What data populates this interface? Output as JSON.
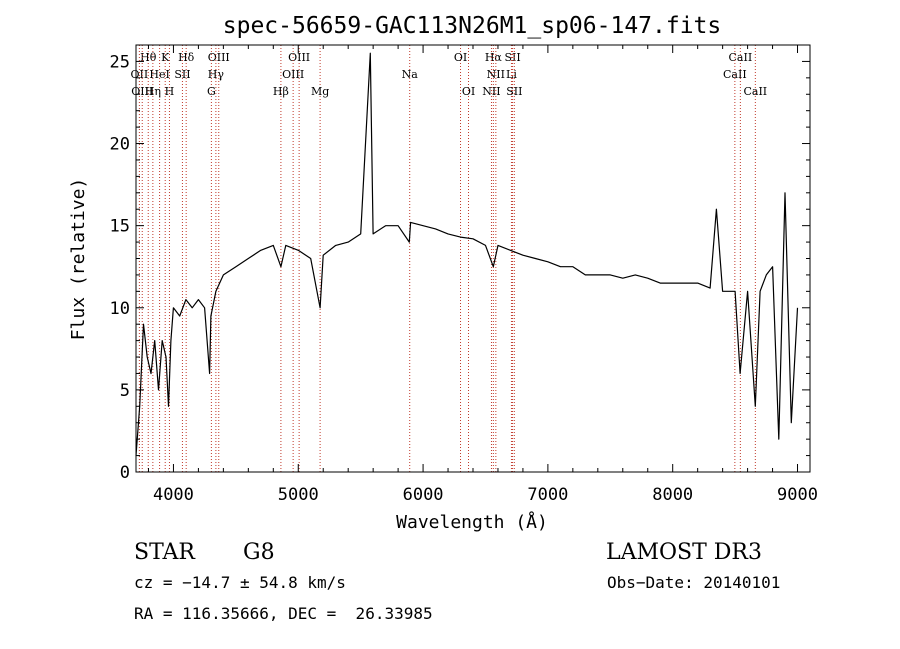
{
  "chart_data": {
    "type": "line",
    "title": "spec-56659-GAC113N26M1_sp06-147.fits",
    "xlabel": "Wavelength (Å)",
    "ylabel": "Flux (relative)",
    "xlim": [
      3700,
      9100
    ],
    "ylim": [
      0,
      26
    ],
    "x_ticks": [
      4000,
      5000,
      6000,
      7000,
      8000,
      9000
    ],
    "y_ticks": [
      0,
      5,
      10,
      15,
      20,
      25
    ],
    "grid": false,
    "series": [
      {
        "color": "#000000",
        "x": [
          3700,
          3730,
          3760,
          3790,
          3820,
          3850,
          3880,
          3910,
          3940,
          3960,
          3980,
          4000,
          4050,
          4100,
          4150,
          4200,
          4250,
          4290,
          4300,
          4340,
          4400,
          4500,
          4600,
          4700,
          4800,
          4861,
          4900,
          5000,
          5100,
          5175,
          5200,
          5300,
          5400,
          5500,
          5577,
          5600,
          5700,
          5800,
          5890,
          5900,
          6000,
          6100,
          6200,
          6300,
          6400,
          6500,
          6563,
          6600,
          6700,
          6800,
          6900,
          7000,
          7100,
          7200,
          7300,
          7400,
          7500,
          7600,
          7700,
          7800,
          7900,
          8000,
          8100,
          8200,
          8300,
          8350,
          8400,
          8500,
          8540,
          8600,
          8662,
          8700,
          8750,
          8800,
          8850,
          8900,
          8950,
          9000
        ],
        "y": [
          1,
          4,
          9,
          7,
          6,
          8,
          5,
          8,
          7,
          4,
          8,
          10,
          9.5,
          10.5,
          10,
          10.5,
          10,
          6,
          9.5,
          11,
          12,
          12.5,
          13,
          13.5,
          13.8,
          12.5,
          13.8,
          13.5,
          13,
          10,
          13.2,
          13.8,
          14,
          14.5,
          25.5,
          14.5,
          15,
          15,
          14,
          15.2,
          15,
          14.8,
          14.5,
          14.3,
          14.2,
          13.8,
          12.5,
          13.8,
          13.5,
          13.2,
          13,
          12.8,
          12.5,
          12.5,
          12,
          12,
          12,
          11.8,
          12,
          11.8,
          11.5,
          11.5,
          11.5,
          11.5,
          11.2,
          16,
          11,
          11,
          6,
          11,
          4,
          11,
          12,
          12.5,
          2,
          17,
          3,
          10
        ]
      }
    ],
    "line_labels": [
      {
        "text": "Hθ",
        "row": 1,
        "lines": [
          3798
        ]
      },
      {
        "text": "K",
        "row": 1,
        "lines": [
          3934
        ]
      },
      {
        "text": "Hδ",
        "row": 1,
        "lines": [
          4102
        ]
      },
      {
        "text": "OIII",
        "row": 1,
        "lines": [
          4363
        ]
      },
      {
        "text": "OIII",
        "row": 1,
        "lines": [
          5007
        ]
      },
      {
        "text": "OI",
        "row": 1,
        "lines": [
          6300
        ]
      },
      {
        "text": "Hα",
        "row": 1,
        "lines": [
          6563
        ]
      },
      {
        "text": "SII",
        "row": 1,
        "lines": [
          6717
        ]
      },
      {
        "text": "CaII",
        "row": 1,
        "lines": [
          8542
        ]
      },
      {
        "text": "OII",
        "row": 2,
        "lines": [
          3727
        ]
      },
      {
        "text": "HeI",
        "row": 2,
        "lines": [
          3889
        ]
      },
      {
        "text": "SII",
        "row": 2,
        "lines": [
          4072
        ]
      },
      {
        "text": "Hγ",
        "row": 2,
        "lines": [
          4340
        ]
      },
      {
        "text": "OIII",
        "row": 2,
        "lines": [
          4959
        ]
      },
      {
        "text": "Na",
        "row": 2,
        "lines": [
          5893
        ]
      },
      {
        "text": "NII",
        "row": 2,
        "lines": [
          6583
        ]
      },
      {
        "text": "Li",
        "row": 2,
        "lines": [
          6708
        ]
      },
      {
        "text": "CaII",
        "row": 2,
        "lines": [
          8498
        ]
      },
      {
        "text": "OIII",
        "row": 3,
        "lines": [
          3750
        ]
      },
      {
        "text": "Hη",
        "row": 3,
        "lines": [
          3835
        ]
      },
      {
        "text": "H",
        "row": 3,
        "lines": [
          3968
        ]
      },
      {
        "text": "G",
        "row": 3,
        "lines": [
          4304
        ]
      },
      {
        "text": "Hβ",
        "row": 3,
        "lines": [
          4861
        ]
      },
      {
        "text": "Mg",
        "row": 3,
        "lines": [
          5175
        ]
      },
      {
        "text": "OI",
        "row": 3,
        "lines": [
          6364
        ]
      },
      {
        "text": "NII",
        "row": 3,
        "lines": [
          6548
        ]
      },
      {
        "text": "SII",
        "row": 3,
        "lines": [
          6731
        ]
      },
      {
        "text": "CaII",
        "row": 3,
        "lines": [
          8662
        ]
      }
    ],
    "line_color": "#c0392b"
  },
  "info": {
    "class_label": "STAR",
    "subclass": "G8",
    "survey": "LAMOST DR3",
    "velocity": "cz = −14.7 ± 54.8 km/s",
    "obs_date": "Obs−Date: 20140101",
    "coords": "RA = 116.35666, DEC =  26.33985"
  }
}
